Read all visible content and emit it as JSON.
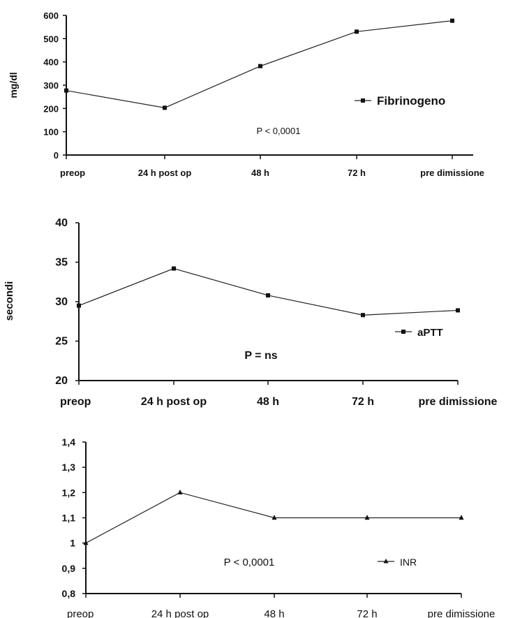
{
  "chart_data": [
    {
      "type": "line",
      "categories": [
        "preop",
        "24 h post op",
        "48 h",
        "72 h",
        "pre dimissione"
      ],
      "series": [
        {
          "name": "Fibrinogeno",
          "values": [
            277,
            203,
            382,
            530,
            577
          ],
          "marker": "square"
        }
      ],
      "ylabel": "mg/dl",
      "ylim": [
        0,
        600
      ],
      "yticks": [
        "0",
        "100",
        "200",
        "300",
        "400",
        "500",
        "600"
      ],
      "annotation": "P < 0,0001",
      "legend_position": "right",
      "grid": false
    },
    {
      "type": "line",
      "categories": [
        "preop",
        "24 h post op",
        "48 h",
        "72 h",
        "pre dimissione"
      ],
      "series": [
        {
          "name": "aPTT",
          "values": [
            29.5,
            34.2,
            30.8,
            28.3,
            28.9
          ],
          "marker": "square"
        }
      ],
      "ylabel": "secondi",
      "ylim": [
        20,
        40
      ],
      "yticks": [
        "20",
        "25",
        "30",
        "35",
        "40"
      ],
      "annotation": "P =  ns",
      "legend_position": "right",
      "grid": false
    },
    {
      "type": "line",
      "categories": [
        "preop",
        "24 h post op",
        "48 h",
        "72 h",
        "pre dimissione"
      ],
      "series": [
        {
          "name": "INR",
          "values": [
            1.0,
            1.2,
            1.1,
            1.1,
            1.1
          ],
          "marker": "triangle"
        }
      ],
      "ylabel": "",
      "ylim": [
        0.8,
        1.4
      ],
      "yticks": [
        "0,8",
        "0,9",
        "1",
        "1,1",
        "1,2",
        "1,3",
        "1,4"
      ],
      "annotation": "P < 0,0001",
      "legend_position": "bottom-right",
      "grid": false
    }
  ]
}
